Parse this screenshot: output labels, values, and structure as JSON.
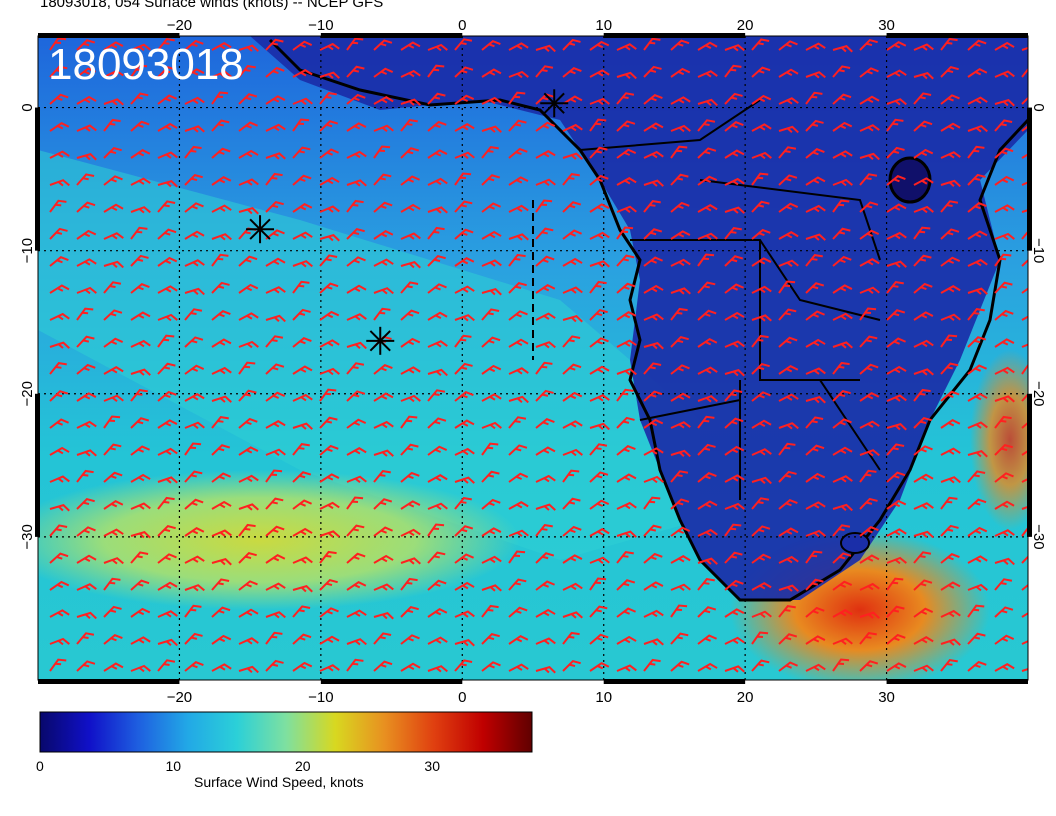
{
  "header": {
    "title": "18093018, 054 Surface winds (knots) -- NCEP GFS",
    "stamp": "18093018"
  },
  "map": {
    "lon_range": [
      -30,
      40
    ],
    "lat_range": [
      -40,
      5
    ],
    "lon_ticks": [
      {
        "label": "−20",
        "value": -20
      },
      {
        "label": "−10",
        "value": -10
      },
      {
        "label": "0",
        "value": 0
      },
      {
        "label": "10",
        "value": 10
      },
      {
        "label": "20",
        "value": 20
      },
      {
        "label": "30",
        "value": 30
      }
    ],
    "lat_ticks": [
      {
        "label": "0",
        "value": 0
      },
      {
        "label": "−10",
        "value": -10
      },
      {
        "label": "−20",
        "value": -20
      },
      {
        "label": "−30",
        "value": -30
      }
    ],
    "barb_color": "#ff2020",
    "coast_color": "#000000",
    "markers": [
      {
        "name": "storm-marker-1",
        "lon": 6.5,
        "lat": 0.3
      },
      {
        "name": "storm-marker-2",
        "lon": -14.3,
        "lat": -8.5
      },
      {
        "name": "storm-marker-3",
        "lon": -5.8,
        "lat": -16.3
      }
    ]
  },
  "colorbar": {
    "label": "Surface Wind Speed, knots",
    "range": [
      0,
      38
    ],
    "ticks": [
      {
        "label": "0",
        "value": 0
      },
      {
        "label": "10",
        "value": 10
      },
      {
        "label": "20",
        "value": 20
      },
      {
        "label": "30",
        "value": 30
      }
    ],
    "colors": [
      "#08086b",
      "#1010c8",
      "#1e5fe0",
      "#22a8e6",
      "#2bd0d8",
      "#7ee0a0",
      "#d8d820",
      "#e89020",
      "#e04010",
      "#c00000",
      "#600000"
    ]
  }
}
